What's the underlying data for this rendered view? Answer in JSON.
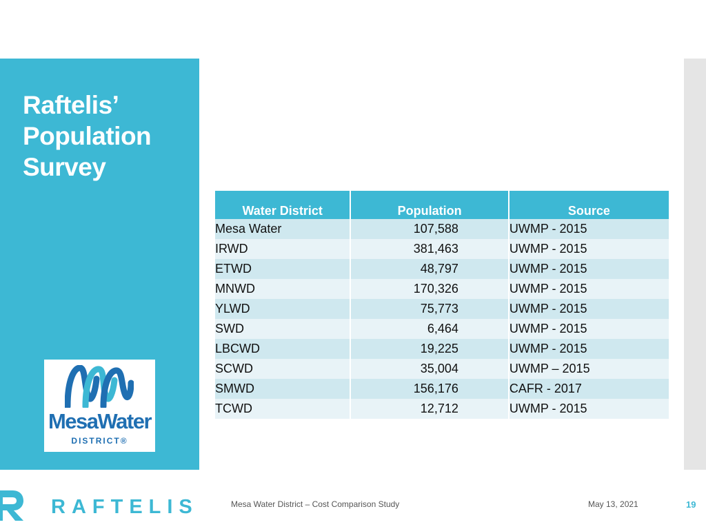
{
  "slide": {
    "title_lines": [
      "Raftelis’",
      "Population",
      "Survey"
    ]
  },
  "table": {
    "headers": [
      "Water District",
      "Population",
      "Source"
    ],
    "rows": [
      {
        "district": "Mesa Water",
        "population": "107,588",
        "source": "UWMP - 2015"
      },
      {
        "district": "IRWD",
        "population": "381,463",
        "source": "UWMP - 2015"
      },
      {
        "district": "ETWD",
        "population": "48,797",
        "source": "UWMP - 2015"
      },
      {
        "district": "MNWD",
        "population": "170,326",
        "source": "UWMP - 2015"
      },
      {
        "district": "YLWD",
        "population": "75,773",
        "source": "UWMP - 2015"
      },
      {
        "district": "SWD",
        "population": "6,464",
        "source": "UWMP - 2015"
      },
      {
        "district": "LBCWD",
        "population": "19,225",
        "source": "UWMP - 2015"
      },
      {
        "district": "SCWD",
        "population": "35,004",
        "source": "UWMP – 2015"
      },
      {
        "district": "SMWD",
        "population": "156,176",
        "source": "CAFR - 2017"
      },
      {
        "district": "TCWD",
        "population": "12,712",
        "source": "UWMP - 2015"
      }
    ]
  },
  "logo": {
    "word": "MesaWater",
    "sub": "DISTRICT®",
    "color": "#1f6fb2"
  },
  "footer": {
    "brand": "RAFTELIS",
    "study": "Mesa Water District – Cost Comparison Study",
    "date": "May 13, 2021",
    "page": "19"
  },
  "colors": {
    "accent": "#3db8d4",
    "row_dark": "#cfe8ef",
    "row_light": "#e8f3f7"
  }
}
